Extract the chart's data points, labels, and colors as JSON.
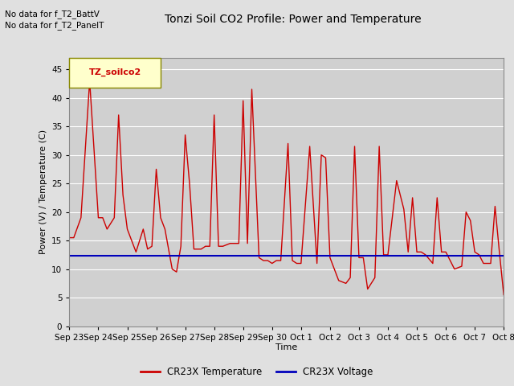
{
  "title": "Tonzi Soil CO2 Profile: Power and Temperature",
  "xlabel": "Time",
  "ylabel": "Power (V) / Temperature (C)",
  "top_left_text_line1": "No data for f_T2_BattV",
  "top_left_text_line2": "No data for f_T2_PanelT",
  "legend_box_label": "TZ_soilco2",
  "ylim": [
    0,
    47
  ],
  "yticks": [
    0,
    5,
    10,
    15,
    20,
    25,
    30,
    35,
    40,
    45
  ],
  "xtick_labels": [
    "Sep 23",
    "Sep 24",
    "Sep 25",
    "Sep 26",
    "Sep 27",
    "Sep 28",
    "Sep 29",
    "Sep 30",
    "Oct 1",
    "Oct 2",
    "Oct 3",
    "Oct 4",
    "Oct 5",
    "Oct 6",
    "Oct 7",
    "Oct 8"
  ],
  "bg_color": "#e0e0e0",
  "plot_bg_color": "#d0d0d0",
  "legend_line1_color": "#cc0000",
  "legend_line2_color": "#0000bb",
  "legend_label1": "CR23X Temperature",
  "legend_label2": "CR23X Voltage",
  "voltage_value": 12.3,
  "temp_x": [
    0.0,
    0.15,
    0.4,
    0.7,
    1.0,
    1.15,
    1.3,
    1.55,
    1.7,
    1.85,
    2.0,
    2.3,
    2.55,
    2.7,
    2.85,
    3.0,
    3.15,
    3.3,
    3.55,
    3.7,
    3.85,
    4.0,
    4.15,
    4.3,
    4.55,
    4.7,
    4.85,
    5.0,
    5.15,
    5.3,
    5.55,
    5.7,
    5.85,
    6.0,
    6.15,
    6.3,
    6.55,
    6.7,
    6.85,
    7.0,
    7.15,
    7.3,
    7.55,
    7.7,
    7.85,
    8.0,
    8.3,
    8.55,
    8.7,
    8.85,
    9.0,
    9.3,
    9.55,
    9.7,
    9.85,
    10.0,
    10.15,
    10.3,
    10.55,
    10.7,
    10.85,
    11.0,
    11.3,
    11.55,
    11.7,
    11.85,
    12.0,
    12.15,
    12.3,
    12.55,
    12.7,
    12.85,
    13.0,
    13.3,
    13.55,
    13.7,
    13.85,
    14.0,
    14.15,
    14.3,
    14.55,
    14.7,
    14.85,
    15.0
  ],
  "temp_y": [
    15.5,
    15.5,
    19.0,
    43.0,
    19.0,
    19.0,
    17.0,
    19.0,
    37.0,
    23.0,
    17.0,
    13.0,
    17.0,
    13.5,
    14.0,
    27.5,
    19.0,
    17.0,
    10.0,
    9.5,
    14.0,
    33.5,
    25.0,
    13.5,
    13.5,
    14.0,
    14.0,
    37.0,
    14.0,
    14.0,
    14.5,
    14.5,
    14.5,
    39.5,
    14.5,
    41.5,
    12.0,
    11.5,
    11.5,
    11.0,
    11.5,
    11.5,
    32.0,
    11.5,
    11.0,
    11.0,
    31.5,
    11.0,
    30.0,
    29.5,
    12.0,
    8.0,
    7.5,
    8.5,
    31.5,
    12.0,
    12.0,
    6.5,
    8.5,
    31.5,
    12.5,
    12.5,
    25.5,
    20.5,
    13.0,
    22.5,
    13.0,
    13.0,
    12.5,
    11.0,
    22.5,
    13.0,
    13.0,
    10.0,
    10.5,
    20.0,
    18.5,
    13.0,
    12.5,
    11.0,
    11.0,
    21.0,
    13.0,
    5.5
  ]
}
